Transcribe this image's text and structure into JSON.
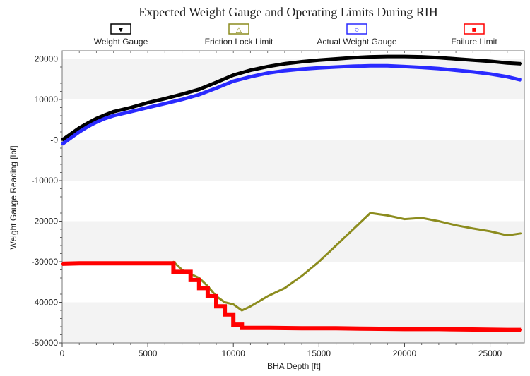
{
  "chart_data": {
    "type": "line",
    "title": "Expected Weight Gauge and Operating Limits During RIH",
    "xlabel": "BHA Depth [ft]",
    "ylabel": "Weight Gauge Reading [lbf]",
    "xlim": [
      0,
      27000
    ],
    "ylim": [
      -50000,
      22000
    ],
    "x_ticks": [
      0,
      5000,
      10000,
      15000,
      20000,
      25000
    ],
    "x_tick_labels": [
      "0",
      "5000",
      "10000",
      "15000",
      "20000",
      "25000"
    ],
    "y_ticks": [
      20000,
      10000,
      0,
      -10000,
      -20000,
      -30000,
      -40000,
      -50000
    ],
    "y_tick_labels": [
      "20000",
      "10000",
      "-0",
      "-10000",
      "-20000",
      "-30000",
      "-40000",
      "-50000"
    ],
    "legend_placement": "top",
    "grid": "alternating horizontal bands",
    "series": [
      {
        "name": "Weight Gauge",
        "color": "#000000",
        "marker": "▼",
        "x": [
          0,
          500,
          1000,
          1500,
          2000,
          2500,
          3000,
          4000,
          5000,
          6000,
          7000,
          8000,
          9000,
          10000,
          11000,
          12000,
          13000,
          14000,
          15000,
          16000,
          17000,
          18000,
          19000,
          20000,
          21000,
          22000,
          23000,
          24000,
          25000,
          26000,
          26800
        ],
        "y": [
          0,
          1500,
          3000,
          4200,
          5300,
          6200,
          7000,
          8000,
          9200,
          10200,
          11300,
          12500,
          14200,
          16000,
          17200,
          18100,
          18800,
          19300,
          19700,
          20000,
          20300,
          20500,
          20600,
          20600,
          20500,
          20300,
          20000,
          19700,
          19400,
          19000,
          18800
        ]
      },
      {
        "name": "Friction Lock Limit",
        "color": "#8c8c1e",
        "marker": "△",
        "x": [
          6500,
          7000,
          7500,
          8000,
          8500,
          9000,
          9500,
          10000,
          10500,
          11000,
          12000,
          13000,
          14000,
          15000,
          16000,
          17000,
          18000,
          19000,
          20000,
          21000,
          22000,
          23000,
          24000,
          25000,
          26000,
          26800
        ],
        "y": [
          -30000,
          -32000,
          -33000,
          -34000,
          -36000,
          -38500,
          -40000,
          -40500,
          -42000,
          -41000,
          -38500,
          -36500,
          -33500,
          -30000,
          -26000,
          -22000,
          -18000,
          -18600,
          -19500,
          -19200,
          -20000,
          -21000,
          -21800,
          -22500,
          -23500,
          -23000
        ]
      },
      {
        "name": "Actual Weight Gauge",
        "color": "#2a2aff",
        "marker": "○",
        "x": [
          0,
          500,
          1000,
          1500,
          2000,
          2500,
          3000,
          4000,
          5000,
          6000,
          7000,
          8000,
          9000,
          10000,
          11000,
          12000,
          13000,
          14000,
          15000,
          16000,
          17000,
          18000,
          19000,
          20000,
          21000,
          22000,
          23000,
          24000,
          25000,
          26000,
          26800
        ],
        "y": [
          -1000,
          500,
          2000,
          3300,
          4400,
          5300,
          6000,
          7000,
          8000,
          9000,
          10000,
          11200,
          12800,
          14500,
          15600,
          16500,
          17100,
          17500,
          17800,
          18000,
          18200,
          18300,
          18300,
          18100,
          17900,
          17600,
          17200,
          16800,
          16300,
          15600,
          14800
        ]
      },
      {
        "name": "Failure Limit",
        "color": "#ff0000",
        "marker": "■",
        "x": [
          0,
          1000,
          2000,
          3000,
          4000,
          5000,
          6000,
          6500,
          6500,
          7500,
          7500,
          8000,
          8000,
          8500,
          8500,
          9000,
          9000,
          9500,
          9500,
          10000,
          10000,
          10500,
          10500,
          12000,
          14000,
          16000,
          18000,
          20000,
          22000,
          24000,
          26000,
          26800
        ],
        "y": [
          -30500,
          -30400,
          -30400,
          -30400,
          -30400,
          -30400,
          -30400,
          -30400,
          -32500,
          -32500,
          -34500,
          -34500,
          -36500,
          -36500,
          -38500,
          -38500,
          -41000,
          -41000,
          -43000,
          -43000,
          -45500,
          -45500,
          -46300,
          -46300,
          -46400,
          -46400,
          -46500,
          -46600,
          -46600,
          -46700,
          -46800,
          -46800
        ]
      }
    ]
  }
}
